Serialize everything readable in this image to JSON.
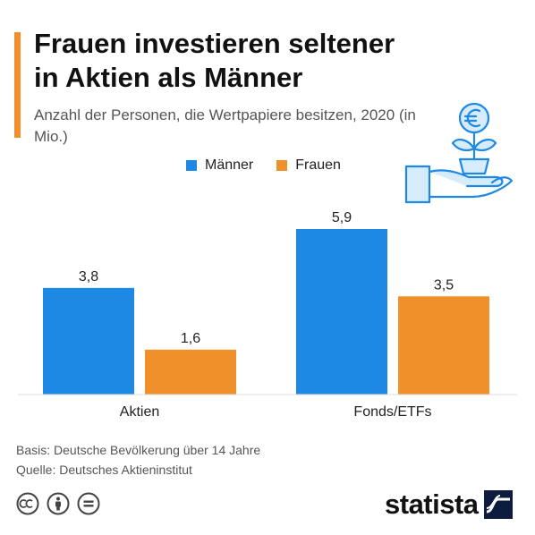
{
  "header": {
    "title": "Frauen investieren seltener in Aktien als Männer",
    "subtitle": "Anzahl der Personen, die Wertpapiere besitzen, 2020 (in Mio.)"
  },
  "legend": {
    "men_label": "Männer",
    "women_label": "Frauen"
  },
  "colors": {
    "men": "#1e88e5",
    "women": "#f0902a",
    "accent": "#f0902a"
  },
  "icons": [
    "euro-plant-in-hand-icon",
    "creative-commons-icon",
    "attribution-icon",
    "no-derivatives-icon",
    "statista-logo-icon"
  ],
  "chart_data": {
    "type": "bar",
    "categories": [
      "Aktien",
      "Fonds/ETFs"
    ],
    "series": [
      {
        "name": "Männer",
        "values": [
          3.8,
          5.9
        ],
        "labels": [
          "3,8",
          "5,9"
        ]
      },
      {
        "name": "Frauen",
        "values": [
          1.6,
          3.5
        ],
        "labels": [
          "1,6",
          "3,5"
        ]
      }
    ],
    "ylim": [
      0,
      5.9
    ],
    "grid": false,
    "legend_position": "top"
  },
  "footer": {
    "basis": "Basis: Deutsche Bevölkerung über 14 Jahre",
    "source": "Quelle: Deutsches Aktieninstitut"
  },
  "brand": {
    "name": "statista"
  }
}
